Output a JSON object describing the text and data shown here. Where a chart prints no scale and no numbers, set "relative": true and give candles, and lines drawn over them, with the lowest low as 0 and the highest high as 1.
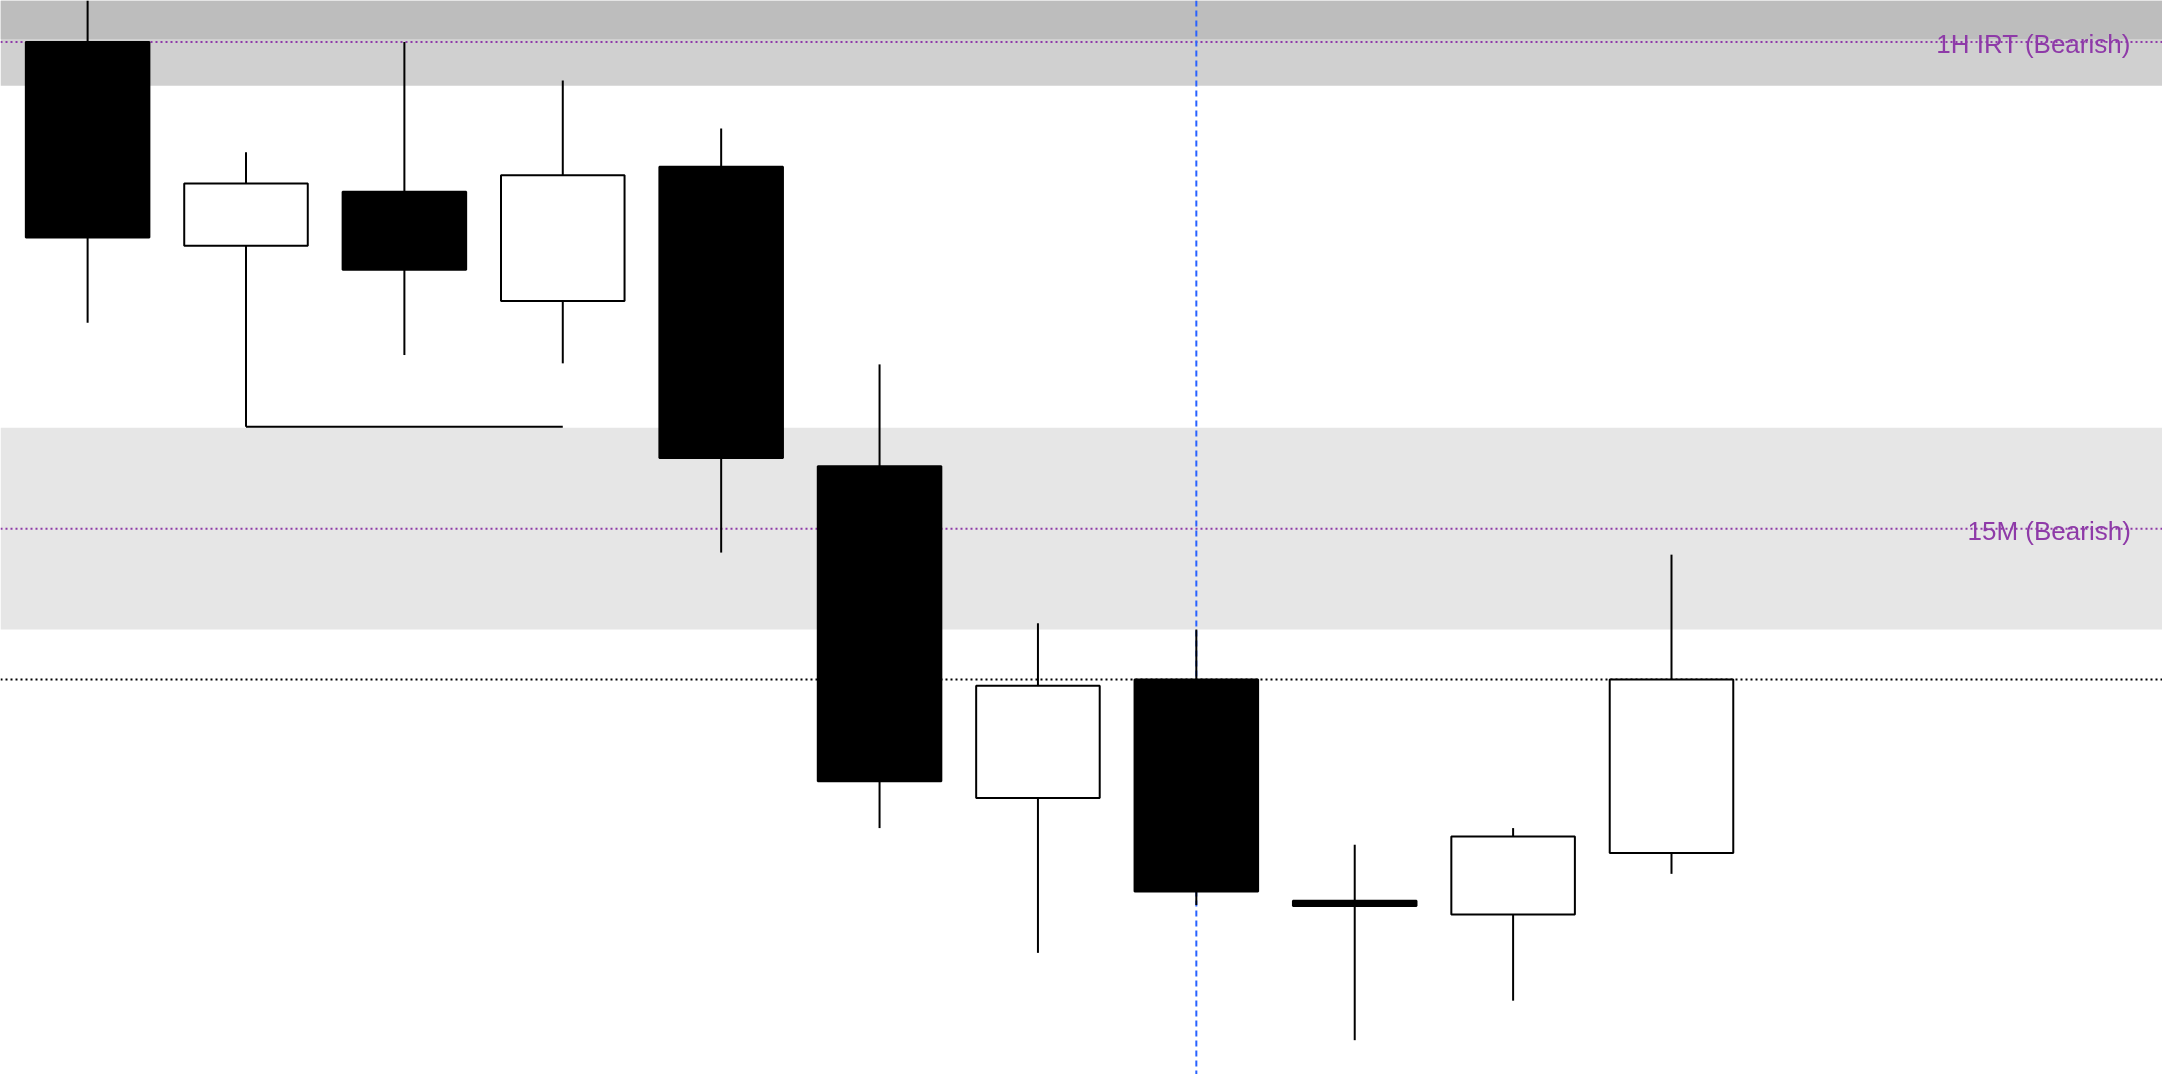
{
  "chart_data": {
    "type": "candlestick",
    "relative": true,
    "grid": false,
    "categories": [
      null,
      null,
      null,
      null,
      null,
      null,
      null,
      null,
      null,
      null,
      null
    ],
    "ohlc": [
      [
        0.96,
        1,
        0.69,
        0.772
      ],
      [
        0.764,
        0.854,
        0.59,
        0.824
      ],
      [
        0.816,
        0.96,
        0.659,
        0.741
      ],
      [
        0.711,
        0.923,
        0.651,
        0.832
      ],
      [
        0.84,
        0.877,
        0.469,
        0.56
      ],
      [
        0.552,
        0.65,
        0.204,
        0.249
      ],
      [
        0.233,
        0.401,
        0.084,
        0.341
      ],
      [
        0.347,
        0.395,
        0.13,
        0.143
      ],
      [
        0.134,
        0.188,
        0.0,
        0.129
      ],
      [
        0.121,
        0.204,
        0.038,
        0.196
      ],
      [
        0.18,
        0.467,
        0.16,
        0.347
      ]
    ],
    "colors": [
      "#000000",
      "#ffffff",
      "#000000",
      "#ffffff",
      "#000000",
      "#000000",
      "#ffffff",
      "#000000",
      "#000000",
      "#ffffff",
      "#ffffff"
    ],
    "series": [
      {
        "type": "line",
        "color": "#000000",
        "values": [
          null,
          0.59,
          0.59,
          0.59,
          null,
          null,
          null,
          null,
          null,
          null,
          null
        ]
      }
    ],
    "bands": [
      {
        "axis": "y",
        "from": 0.918,
        "to": 1,
        "color": "#d0d0d0"
      },
      {
        "axis": "y",
        "from": 0.963,
        "to": 1,
        "color": "#bdbdbd"
      },
      {
        "axis": "y",
        "from": 0.395,
        "to": 0.589,
        "color": "#e6e6e6"
      }
    ],
    "ref_lines": [
      {
        "axis": "y",
        "value": 0.96,
        "label": "1H IRT (Bearish)",
        "color": "#8e3aa8",
        "line_style": "dotted"
      },
      {
        "axis": "y",
        "value": 0.492,
        "label": "15M (Bearish)",
        "color": "#8e3aa8",
        "line_style": "dotted"
      },
      {
        "axis": "y",
        "value": 0.347,
        "color": "#000000",
        "line_style": "dotted"
      }
    ]
  }
}
